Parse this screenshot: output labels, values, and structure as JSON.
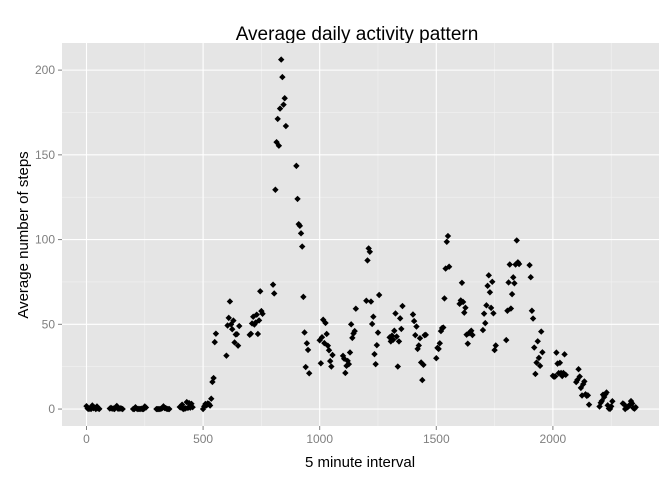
{
  "chart_data": {
    "type": "scatter",
    "title": "Average daily activity pattern",
    "xlabel": "5 minute interval",
    "ylabel": "Average number of steps",
    "xlim": [
      -105,
      2455
    ],
    "ylim": [
      -10,
      216
    ],
    "xticks": [
      0,
      500,
      1000,
      1500,
      2000
    ],
    "yticks": [
      0,
      50,
      100,
      150,
      200
    ],
    "grid": true,
    "marker": "diamond",
    "point_color": "#000000",
    "panel_color": "#e5e5e5",
    "points": [
      [
        0,
        1.7
      ],
      [
        5,
        0.3
      ],
      [
        10,
        0.1
      ],
      [
        15,
        0.2
      ],
      [
        20,
        0.1
      ],
      [
        25,
        2.1
      ],
      [
        30,
        0.5
      ],
      [
        35,
        0.9
      ],
      [
        40,
        0.0
      ],
      [
        45,
        1.5
      ],
      [
        50,
        0.3
      ],
      [
        55,
        0.1
      ],
      [
        100,
        0.3
      ],
      [
        105,
        0.7
      ],
      [
        110,
        0.2
      ],
      [
        115,
        0.3
      ],
      [
        120,
        0.0
      ],
      [
        125,
        1.1
      ],
      [
        130,
        1.8
      ],
      [
        135,
        0.2
      ],
      [
        140,
        0.2
      ],
      [
        145,
        0.4
      ],
      [
        150,
        0.3
      ],
      [
        155,
        0.0
      ],
      [
        200,
        0.0
      ],
      [
        205,
        0.0
      ],
      [
        210,
        1.1
      ],
      [
        215,
        0.3
      ],
      [
        220,
        0.0
      ],
      [
        225,
        0.1
      ],
      [
        230,
        0.0
      ],
      [
        235,
        0.2
      ],
      [
        240,
        0.0
      ],
      [
        245,
        0.0
      ],
      [
        250,
        1.5
      ],
      [
        255,
        0.9
      ],
      [
        300,
        0.0
      ],
      [
        305,
        0.0
      ],
      [
        310,
        0.0
      ],
      [
        315,
        0.0
      ],
      [
        320,
        0.2
      ],
      [
        325,
        0.6
      ],
      [
        330,
        1.6
      ],
      [
        335,
        0.6
      ],
      [
        340,
        0.5
      ],
      [
        345,
        0.1
      ],
      [
        350,
        0.0
      ],
      [
        355,
        0.0
      ],
      [
        400,
        1.2
      ],
      [
        405,
        0.9
      ],
      [
        410,
        2.6
      ],
      [
        415,
        0.0
      ],
      [
        420,
        0.3
      ],
      [
        425,
        0.4
      ],
      [
        430,
        4.1
      ],
      [
        435,
        0.7
      ],
      [
        440,
        3.5
      ],
      [
        445,
        0.8
      ],
      [
        450,
        3.1
      ],
      [
        455,
        1.1
      ],
      [
        500,
        0.0
      ],
      [
        505,
        1.6
      ],
      [
        510,
        3.0
      ],
      [
        515,
        2.2
      ],
      [
        520,
        3.3
      ],
      [
        525,
        3.0
      ],
      [
        530,
        2.1
      ],
      [
        535,
        6.1
      ],
      [
        540,
        16.0
      ],
      [
        545,
        18.3
      ],
      [
        550,
        39.5
      ],
      [
        555,
        44.5
      ],
      [
        600,
        31.5
      ],
      [
        605,
        49.3
      ],
      [
        610,
        53.8
      ],
      [
        615,
        63.5
      ],
      [
        620,
        50.0
      ],
      [
        625,
        47.1
      ],
      [
        630,
        52.2
      ],
      [
        635,
        39.3
      ],
      [
        640,
        44.0
      ],
      [
        645,
        44.2
      ],
      [
        650,
        37.4
      ],
      [
        655,
        49.0
      ],
      [
        700,
        43.8
      ],
      [
        705,
        44.4
      ],
      [
        710,
        50.5
      ],
      [
        715,
        54.5
      ],
      [
        720,
        49.9
      ],
      [
        725,
        51.0
      ],
      [
        730,
        55.7
      ],
      [
        735,
        44.3
      ],
      [
        740,
        52.3
      ],
      [
        745,
        69.5
      ],
      [
        750,
        57.8
      ],
      [
        755,
        56.2
      ],
      [
        800,
        73.4
      ],
      [
        805,
        68.2
      ],
      [
        810,
        129.4
      ],
      [
        815,
        157.5
      ],
      [
        820,
        171.2
      ],
      [
        825,
        155.4
      ],
      [
        830,
        177.3
      ],
      [
        835,
        206.2
      ],
      [
        840,
        195.9
      ],
      [
        845,
        179.6
      ],
      [
        850,
        183.4
      ],
      [
        855,
        167.0
      ],
      [
        900,
        143.5
      ],
      [
        905,
        124.0
      ],
      [
        910,
        109.1
      ],
      [
        915,
        108.1
      ],
      [
        920,
        103.7
      ],
      [
        925,
        95.9
      ],
      [
        930,
        66.2
      ],
      [
        935,
        45.2
      ],
      [
        940,
        24.8
      ],
      [
        945,
        38.8
      ],
      [
        950,
        34.9
      ],
      [
        955,
        21.1
      ],
      [
        1000,
        40.6
      ],
      [
        1005,
        27.0
      ],
      [
        1010,
        42.4
      ],
      [
        1015,
        52.7
      ],
      [
        1020,
        38.9
      ],
      [
        1025,
        50.8
      ],
      [
        1030,
        44.3
      ],
      [
        1035,
        37.4
      ],
      [
        1040,
        34.7
      ],
      [
        1045,
        28.3
      ],
      [
        1050,
        25.1
      ],
      [
        1055,
        31.9
      ],
      [
        1100,
        31.4
      ],
      [
        1105,
        29.7
      ],
      [
        1110,
        21.3
      ],
      [
        1115,
        25.5
      ],
      [
        1120,
        28.4
      ],
      [
        1125,
        26.5
      ],
      [
        1130,
        33.4
      ],
      [
        1135,
        50.0
      ],
      [
        1140,
        42.0
      ],
      [
        1145,
        44.6
      ],
      [
        1150,
        46.0
      ],
      [
        1155,
        59.2
      ],
      [
        1200,
        63.9
      ],
      [
        1205,
        87.7
      ],
      [
        1210,
        94.8
      ],
      [
        1215,
        92.8
      ],
      [
        1220,
        63.4
      ],
      [
        1225,
        50.2
      ],
      [
        1230,
        54.5
      ],
      [
        1235,
        32.4
      ],
      [
        1240,
        26.5
      ],
      [
        1245,
        37.7
      ],
      [
        1250,
        45.1
      ],
      [
        1255,
        67.3
      ],
      [
        1300,
        42.3
      ],
      [
        1305,
        39.9
      ],
      [
        1310,
        43.3
      ],
      [
        1315,
        40.9
      ],
      [
        1320,
        46.2
      ],
      [
        1325,
        56.4
      ],
      [
        1330,
        42.8
      ],
      [
        1335,
        25.1
      ],
      [
        1340,
        39.9
      ],
      [
        1345,
        53.5
      ],
      [
        1350,
        47.3
      ],
      [
        1355,
        60.8
      ],
      [
        1400,
        55.8
      ],
      [
        1405,
        51.9
      ],
      [
        1410,
        43.6
      ],
      [
        1415,
        48.7
      ],
      [
        1420,
        35.5
      ],
      [
        1425,
        37.5
      ],
      [
        1430,
        41.8
      ],
      [
        1435,
        27.5
      ],
      [
        1440,
        17.1
      ],
      [
        1445,
        26.1
      ],
      [
        1450,
        43.6
      ],
      [
        1455,
        43.8
      ],
      [
        1500,
        30.0
      ],
      [
        1505,
        36.1
      ],
      [
        1510,
        35.5
      ],
      [
        1515,
        38.8
      ],
      [
        1520,
        46.0
      ],
      [
        1525,
        47.8
      ],
      [
        1530,
        48.1
      ],
      [
        1535,
        65.3
      ],
      [
        1540,
        82.9
      ],
      [
        1545,
        98.7
      ],
      [
        1550,
        102.1
      ],
      [
        1555,
        84.0
      ],
      [
        1600,
        62.1
      ],
      [
        1605,
        64.1
      ],
      [
        1610,
        74.5
      ],
      [
        1615,
        63.2
      ],
      [
        1620,
        56.9
      ],
      [
        1625,
        59.8
      ],
      [
        1630,
        43.9
      ],
      [
        1635,
        38.6
      ],
      [
        1640,
        44.7
      ],
      [
        1645,
        45.5
      ],
      [
        1650,
        46.2
      ],
      [
        1655,
        43.7
      ],
      [
        1700,
        46.6
      ],
      [
        1705,
        56.3
      ],
      [
        1710,
        50.7
      ],
      [
        1715,
        61.2
      ],
      [
        1720,
        72.7
      ],
      [
        1725,
        78.9
      ],
      [
        1730,
        68.9
      ],
      [
        1735,
        59.7
      ],
      [
        1740,
        75.1
      ],
      [
        1745,
        56.5
      ],
      [
        1750,
        34.8
      ],
      [
        1755,
        37.5
      ],
      [
        1800,
        40.7
      ],
      [
        1805,
        58.0
      ],
      [
        1810,
        74.7
      ],
      [
        1815,
        85.3
      ],
      [
        1820,
        59.3
      ],
      [
        1825,
        67.8
      ],
      [
        1830,
        77.7
      ],
      [
        1835,
        74.2
      ],
      [
        1840,
        85.3
      ],
      [
        1845,
        99.5
      ],
      [
        1850,
        86.6
      ],
      [
        1855,
        85.6
      ],
      [
        1900,
        84.9
      ],
      [
        1905,
        77.8
      ],
      [
        1910,
        58.0
      ],
      [
        1915,
        53.4
      ],
      [
        1920,
        36.3
      ],
      [
        1925,
        20.7
      ],
      [
        1930,
        27.4
      ],
      [
        1935,
        40.0
      ],
      [
        1940,
        30.2
      ],
      [
        1945,
        25.5
      ],
      [
        1950,
        45.7
      ],
      [
        1955,
        33.5
      ],
      [
        2000,
        19.6
      ],
      [
        2005,
        19.0
      ],
      [
        2010,
        19.3
      ],
      [
        2015,
        33.3
      ],
      [
        2020,
        26.8
      ],
      [
        2025,
        21.2
      ],
      [
        2030,
        27.3
      ],
      [
        2035,
        21.3
      ],
      [
        2040,
        19.5
      ],
      [
        2045,
        21.3
      ],
      [
        2050,
        32.3
      ],
      [
        2055,
        20.2
      ],
      [
        2100,
        15.9
      ],
      [
        2105,
        17.2
      ],
      [
        2110,
        23.5
      ],
      [
        2115,
        19.2
      ],
      [
        2120,
        12.5
      ],
      [
        2125,
        8.0
      ],
      [
        2130,
        14.7
      ],
      [
        2135,
        16.3
      ],
      [
        2140,
        8.7
      ],
      [
        2145,
        7.8
      ],
      [
        2150,
        8.1
      ],
      [
        2155,
        2.6
      ],
      [
        2200,
        1.5
      ],
      [
        2205,
        3.7
      ],
      [
        2210,
        4.8
      ],
      [
        2215,
        8.5
      ],
      [
        2220,
        7.1
      ],
      [
        2225,
        8.7
      ],
      [
        2230,
        9.8
      ],
      [
        2235,
        2.2
      ],
      [
        2240,
        0.3
      ],
      [
        2245,
        0.1
      ],
      [
        2250,
        1.6
      ],
      [
        2255,
        4.6
      ],
      [
        2300,
        3.3
      ],
      [
        2305,
        2.8
      ],
      [
        2310,
        0.0
      ],
      [
        2315,
        0.8
      ],
      [
        2320,
        1.0
      ],
      [
        2325,
        1.6
      ],
      [
        2330,
        2.6
      ],
      [
        2335,
        4.7
      ],
      [
        2340,
        3.3
      ],
      [
        2345,
        0.6
      ],
      [
        2350,
        0.2
      ],
      [
        2355,
        1.1
      ]
    ]
  }
}
